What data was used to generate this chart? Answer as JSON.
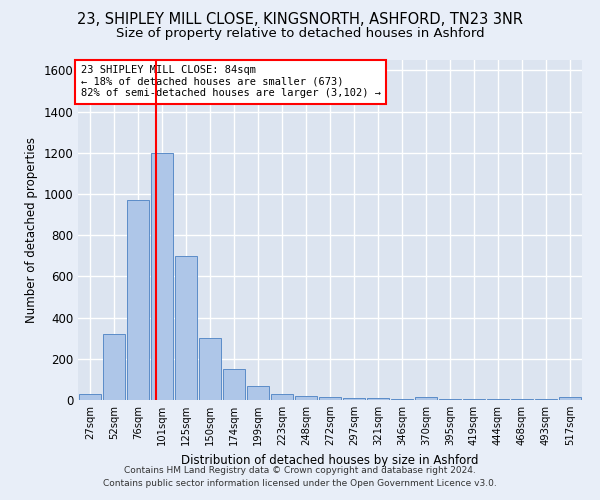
{
  "title1": "23, SHIPLEY MILL CLOSE, KINGSNORTH, ASHFORD, TN23 3NR",
  "title2": "Size of property relative to detached houses in Ashford",
  "xlabel": "Distribution of detached houses by size in Ashford",
  "ylabel": "Number of detached properties",
  "footer1": "Contains HM Land Registry data © Crown copyright and database right 2024.",
  "footer2": "Contains public sector information licensed under the Open Government Licence v3.0.",
  "annotation_line1": "23 SHIPLEY MILL CLOSE: 84sqm",
  "annotation_line2": "← 18% of detached houses are smaller (673)",
  "annotation_line3": "82% of semi-detached houses are larger (3,102) →",
  "bar_categories": [
    "27sqm",
    "52sqm",
    "76sqm",
    "101sqm",
    "125sqm",
    "150sqm",
    "174sqm",
    "199sqm",
    "223sqm",
    "248sqm",
    "272sqm",
    "297sqm",
    "321sqm",
    "346sqm",
    "370sqm",
    "395sqm",
    "419sqm",
    "444sqm",
    "468sqm",
    "493sqm",
    "517sqm"
  ],
  "bar_values": [
    30,
    320,
    970,
    1200,
    700,
    300,
    150,
    70,
    30,
    20,
    15,
    10,
    8,
    5,
    15,
    3,
    3,
    3,
    3,
    3,
    15
  ],
  "bar_color": "#aec6e8",
  "bar_edge_color": "#5b8cc8",
  "vline_x": 2.75,
  "ylim": [
    0,
    1650
  ],
  "yticks": [
    0,
    200,
    400,
    600,
    800,
    1000,
    1200,
    1400,
    1600
  ],
  "bg_color": "#dce4f0",
  "grid_color": "#ffffff",
  "fig_bg_color": "#e8eef8"
}
